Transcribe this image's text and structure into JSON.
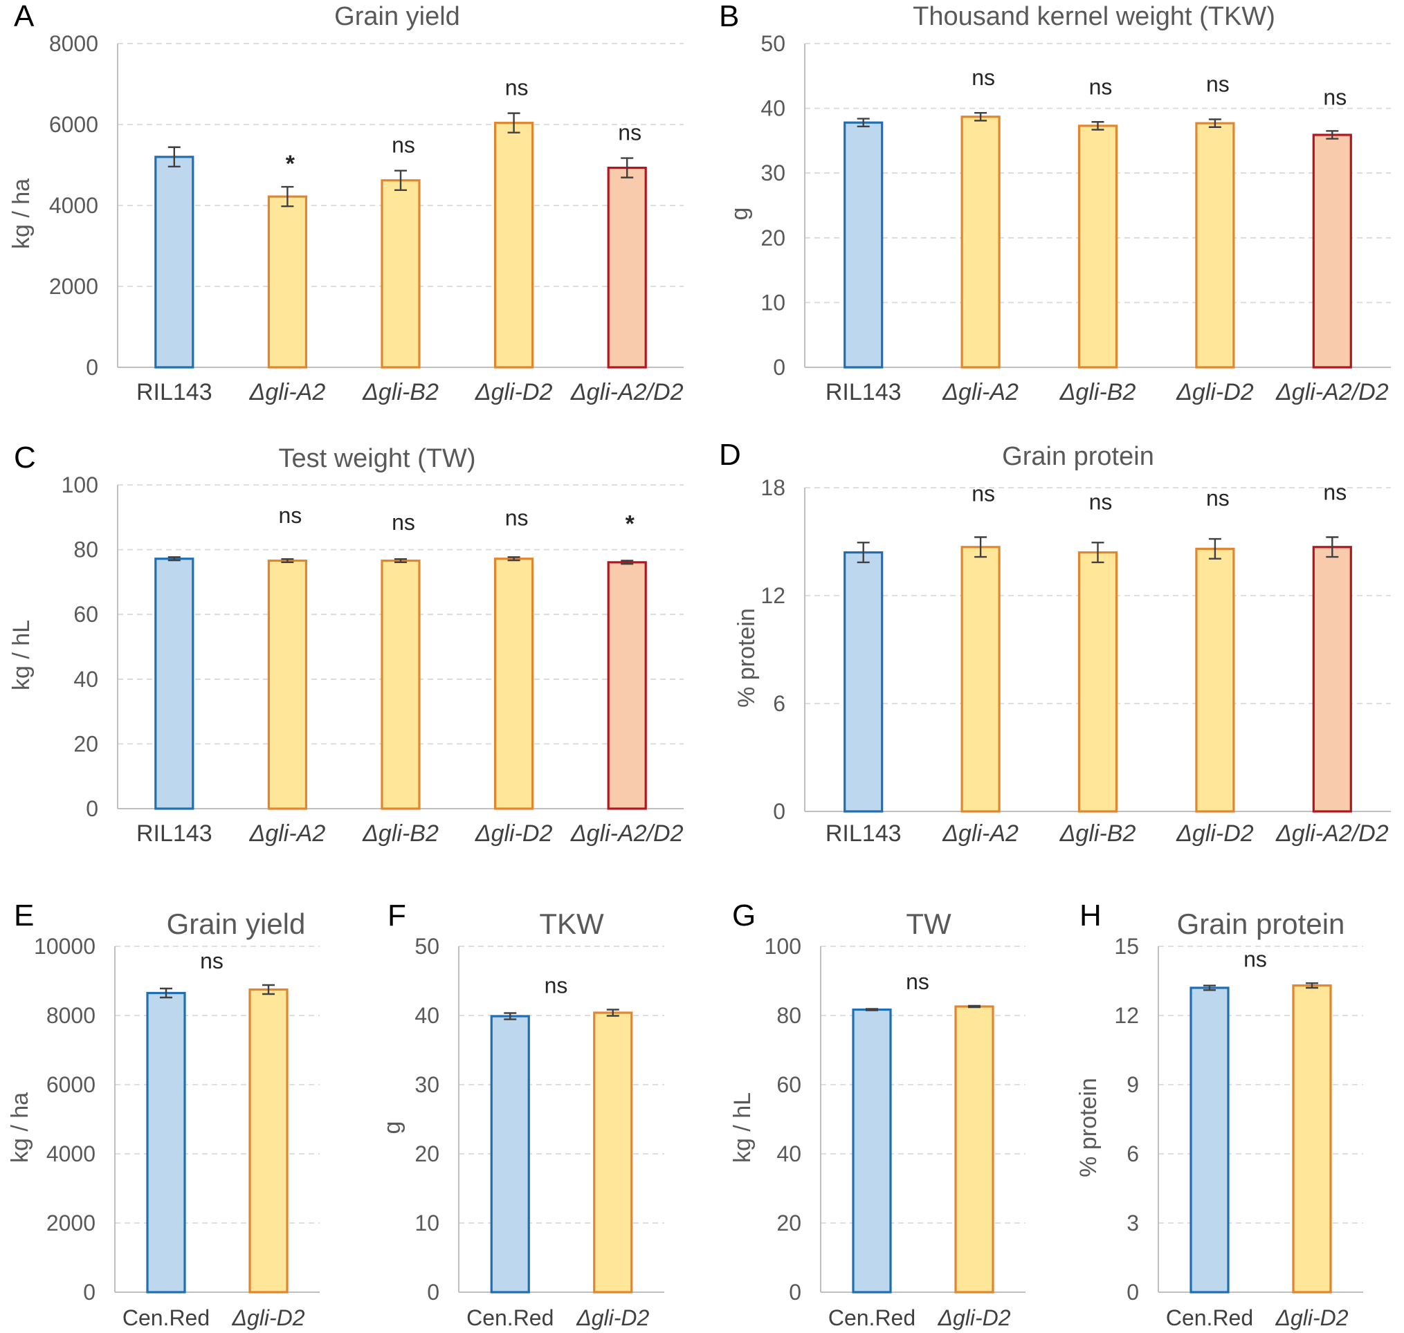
{
  "colors": {
    "blue_fill": "#BDD7EE",
    "blue_edge": "#1F6FB2",
    "yellow_fill": "#FFE699",
    "yellow_edge": "#E0862F",
    "salmon_fill": "#F8CBAD",
    "salmon_edge": "#B2161E",
    "grid": "#D9D9D9",
    "axis": "#BFBFBF",
    "errorbar": "#404040"
  },
  "chart_data": [
    {
      "panel": "A",
      "type": "bar",
      "title": "Grain yield",
      "ylabel": "kg / ha",
      "ylim": [
        0,
        8000
      ],
      "yticks": [
        "0",
        "2000",
        "4000",
        "6000",
        "8000"
      ],
      "categories": [
        "RIL143",
        "Δgli-A2",
        "Δgli-B2",
        "Δgli-D2",
        "Δgli-A2/D2"
      ],
      "italic": [
        false,
        true,
        true,
        true,
        true
      ],
      "values": [
        5200,
        4220,
        4620,
        6040,
        4930
      ],
      "errors": [
        240,
        240,
        240,
        240,
        240
      ],
      "annotations": [
        "",
        "*",
        "ns",
        "ns",
        "ns"
      ],
      "colors": [
        "blue",
        "yellow",
        "yellow",
        "yellow",
        "salmon"
      ]
    },
    {
      "panel": "B",
      "type": "bar",
      "title": "Thousand kernel weight (TKW)",
      "ylabel": "g",
      "ylim": [
        0,
        50
      ],
      "yticks": [
        "0",
        "10",
        "20",
        "30",
        "40",
        "50"
      ],
      "categories": [
        "RIL143",
        "Δgli-A2",
        "Δgli-B2",
        "Δgli-D2",
        "Δgli-A2/D2"
      ],
      "italic": [
        false,
        true,
        true,
        true,
        true
      ],
      "values": [
        37.8,
        38.7,
        37.3,
        37.7,
        35.9
      ],
      "errors": [
        0.6,
        0.6,
        0.6,
        0.6,
        0.6
      ],
      "annotations": [
        "",
        "ns",
        "ns",
        "ns",
        "ns"
      ],
      "colors": [
        "blue",
        "yellow",
        "yellow",
        "yellow",
        "salmon"
      ]
    },
    {
      "panel": "C",
      "type": "bar",
      "title": "Test weight (TW)",
      "ylabel": "kg / hL",
      "ylim": [
        0,
        100
      ],
      "yticks": [
        "0",
        "20",
        "40",
        "60",
        "80",
        "100"
      ],
      "categories": [
        "RIL143",
        "Δgli-A2",
        "Δgli-B2",
        "Δgli-D2",
        "Δgli-A2/D2"
      ],
      "italic": [
        false,
        true,
        true,
        true,
        true
      ],
      "values": [
        77.2,
        76.6,
        76.6,
        77.2,
        76.1
      ],
      "errors": [
        0.5,
        0.5,
        0.5,
        0.5,
        0.5
      ],
      "annotations": [
        "",
        "ns",
        "ns",
        "ns",
        "*"
      ],
      "colors": [
        "blue",
        "yellow",
        "yellow",
        "yellow",
        "salmon"
      ]
    },
    {
      "panel": "D",
      "type": "bar",
      "title": "Grain protein",
      "ylabel": "% protein",
      "ylim": [
        0,
        18
      ],
      "yticks": [
        "0",
        "6",
        "12",
        "18"
      ],
      "categories": [
        "RIL143",
        "Δgli-A2",
        "Δgli-B2",
        "Δgli-D2",
        "Δgli-A2/D2"
      ],
      "italic": [
        false,
        true,
        true,
        true,
        true
      ],
      "values": [
        14.4,
        14.7,
        14.4,
        14.6,
        14.7
      ],
      "errors": [
        0.55,
        0.55,
        0.55,
        0.55,
        0.55
      ],
      "annotations": [
        "",
        "ns",
        "ns",
        "ns",
        "ns"
      ],
      "colors": [
        "blue",
        "yellow",
        "yellow",
        "yellow",
        "salmon"
      ]
    },
    {
      "panel": "E",
      "type": "bar",
      "title": "Grain yield",
      "ylabel": "kg / ha",
      "ylim": [
        0,
        10000
      ],
      "yticks": [
        "0",
        "2000",
        "4000",
        "6000",
        "8000",
        "10000"
      ],
      "categories": [
        "Cen.Red",
        "Δgli-D2"
      ],
      "italic": [
        false,
        true
      ],
      "values": [
        8650,
        8750
      ],
      "errors": [
        130,
        130
      ],
      "annotations": [
        "ns"
      ],
      "colors": [
        "blue",
        "yellow"
      ]
    },
    {
      "panel": "F",
      "type": "bar",
      "title": "TKW",
      "ylabel": "g",
      "ylim": [
        0,
        50
      ],
      "yticks": [
        "0",
        "10",
        "20",
        "30",
        "40",
        "50"
      ],
      "categories": [
        "Cen.Red",
        "Δgli-D2"
      ],
      "italic": [
        false,
        true
      ],
      "values": [
        39.9,
        40.4
      ],
      "errors": [
        0.45,
        0.45
      ],
      "annotations": [
        "ns"
      ],
      "colors": [
        "blue",
        "yellow"
      ]
    },
    {
      "panel": "G",
      "type": "bar",
      "title": "TW",
      "ylabel": "kg / hL",
      "ylim": [
        0,
        100
      ],
      "yticks": [
        "0",
        "20",
        "40",
        "60",
        "80",
        "100"
      ],
      "categories": [
        "Cen.Red",
        "Δgli-D2"
      ],
      "italic": [
        false,
        true
      ],
      "values": [
        81.7,
        82.6
      ],
      "errors": [
        0.2,
        0.2
      ],
      "annotations": [
        "ns"
      ],
      "colors": [
        "blue",
        "yellow"
      ]
    },
    {
      "panel": "H",
      "type": "bar",
      "title": "Grain protein",
      "ylabel": "% protein",
      "ylim": [
        0,
        15
      ],
      "yticks": [
        "0",
        "3",
        "6",
        "9",
        "12",
        "15"
      ],
      "categories": [
        "Cen.Red",
        "Δgli-D2"
      ],
      "italic": [
        false,
        true
      ],
      "values": [
        13.2,
        13.3
      ],
      "errors": [
        0.1,
        0.1
      ],
      "annotations": [
        "ns"
      ],
      "colors": [
        "blue",
        "yellow"
      ]
    }
  ]
}
